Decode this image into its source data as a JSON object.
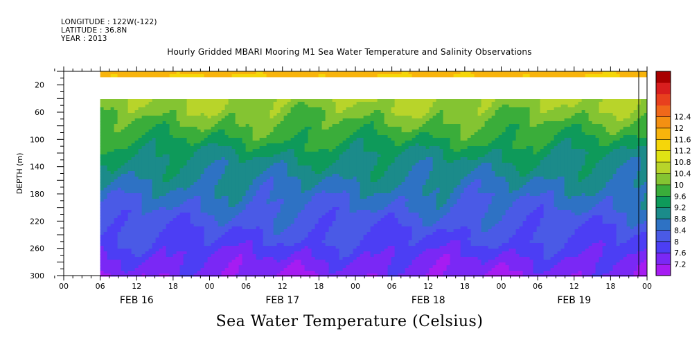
{
  "header": {
    "longitude": "LONGITUDE : 122W(-122)",
    "latitude": "LATITUDE : 36.8N",
    "year": "YEAR : 2013"
  },
  "chart_data": {
    "type": "heatmap",
    "title": "Hourly Gridded MBARI Mooring M1 Sea Water Temperature and Salinity Observations",
    "xlabel": "Sea Water Temperature (Celsius)",
    "ylabel": "DEPTH (m)",
    "x_hour_ticks": [
      "00",
      "06",
      "12",
      "18",
      "00",
      "06",
      "12",
      "18",
      "00",
      "06",
      "12",
      "18",
      "00",
      "06",
      "12",
      "18",
      "00"
    ],
    "x_day_labels": [
      "FEB 16",
      "FEB 17",
      "FEB 18",
      "FEB 19"
    ],
    "x_range_hours": [
      0,
      96
    ],
    "data_start_hour": 6,
    "y_ticks": [
      20,
      60,
      100,
      140,
      180,
      220,
      260,
      300
    ],
    "y_range": [
      0,
      300
    ],
    "y_inverted": true,
    "depth_gap_m": [
      10,
      40
    ],
    "colorbar": {
      "levels": [
        "7.2",
        "7.6",
        "8",
        "8.4",
        "8.8",
        "9.2",
        "9.6",
        "10",
        "10.4",
        "10.8",
        "11.2",
        "11.6",
        "12",
        "12.4"
      ],
      "colors": [
        "#a61cf2",
        "#7a28f5",
        "#4c3ef4",
        "#4a5ae6",
        "#2e72c4",
        "#1b8b8a",
        "#0e9a5a",
        "#3aad3a",
        "#84c432",
        "#b8d42a",
        "#dfe314",
        "#f5d60a",
        "#f8b40c",
        "#f49012",
        "#f0681a",
        "#e8401e",
        "#d81e1e",
        "#a80000"
      ]
    },
    "depth_profile": [
      {
        "depth": 0,
        "temp": 11.8
      },
      {
        "depth": 10,
        "temp": 11.6
      },
      {
        "depth": 40,
        "temp": 10.4
      },
      {
        "depth": 60,
        "temp": 10.2
      },
      {
        "depth": 80,
        "temp": 9.9
      },
      {
        "depth": 100,
        "temp": 9.6
      },
      {
        "depth": 130,
        "temp": 9.1
      },
      {
        "depth": 160,
        "temp": 8.8
      },
      {
        "depth": 190,
        "temp": 8.5
      },
      {
        "depth": 220,
        "temp": 8.2
      },
      {
        "depth": 250,
        "temp": 7.9
      },
      {
        "depth": 280,
        "temp": 7.5
      },
      {
        "depth": 300,
        "temp": 7.3
      }
    ]
  }
}
